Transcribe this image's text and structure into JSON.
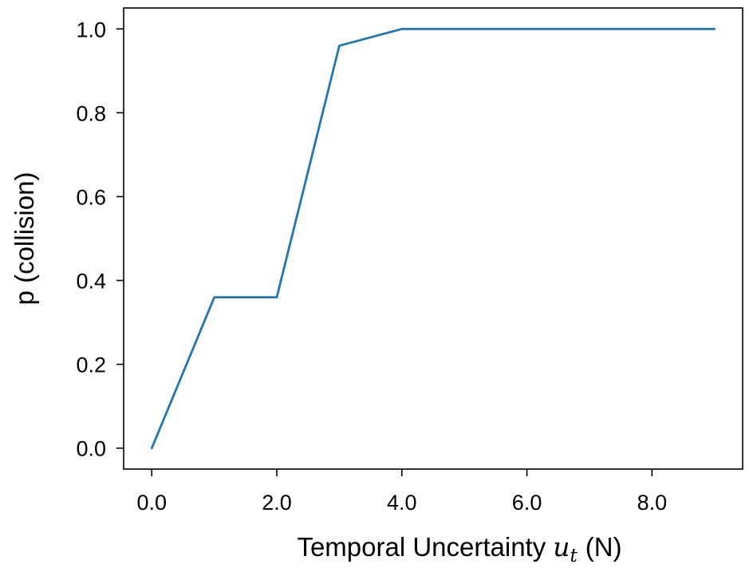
{
  "chart_data": {
    "type": "line",
    "title": "",
    "xlabel": "Temporal Uncertainty",
    "xlabel_symbol": "u",
    "xlabel_symbol_subscript": "t",
    "xlabel_unit": "(N)",
    "ylabel": "p (collision)",
    "xlim": [
      -0.45,
      9.45
    ],
    "ylim": [
      -0.05,
      1.05
    ],
    "xticks": [
      0,
      2,
      4,
      6,
      8
    ],
    "xtick_labels": [
      "0.0",
      "2.0",
      "4.0",
      "6.0",
      "8.0"
    ],
    "yticks": [
      0,
      0.2,
      0.4,
      0.6,
      0.8,
      1.0
    ],
    "ytick_labels": [
      "0.0",
      "0.2",
      "0.4",
      "0.6",
      "0.8",
      "1.0"
    ],
    "grid": false,
    "series": [
      {
        "color": "#1f77b4",
        "x": [
          0,
          1,
          2,
          3,
          4,
          5,
          6,
          7,
          8,
          9
        ],
        "y": [
          0.0,
          0.36,
          0.36,
          0.96,
          1.0,
          1.0,
          1.0,
          1.0,
          1.0,
          1.0
        ]
      }
    ]
  }
}
